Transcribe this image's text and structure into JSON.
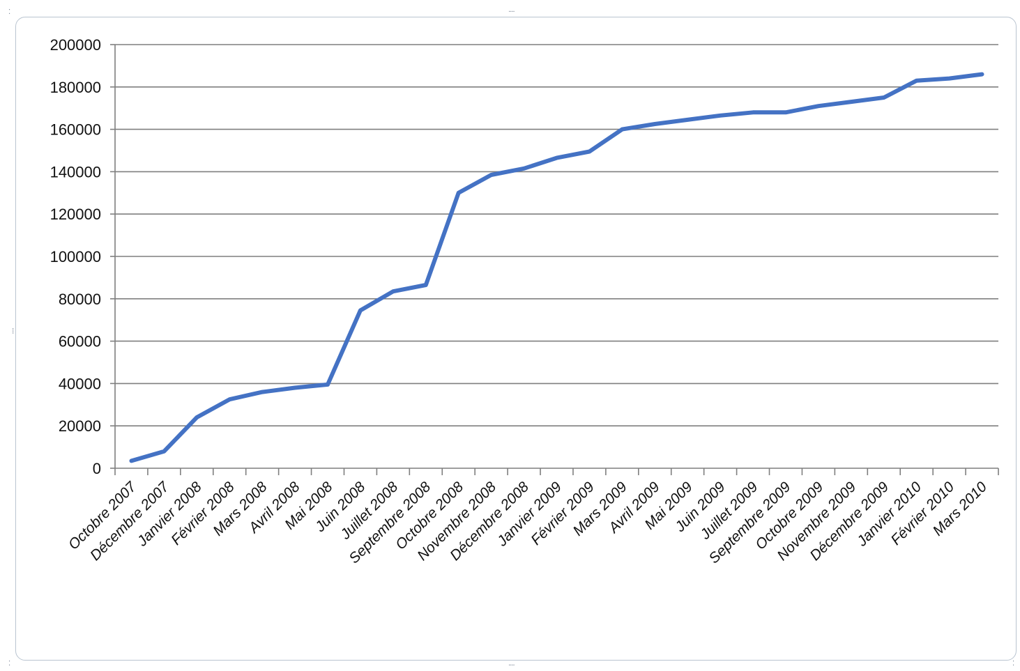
{
  "chart_data": {
    "type": "line",
    "title": "",
    "xlabel": "",
    "ylabel": "",
    "ylim": [
      0,
      200000
    ],
    "yticks": [
      0,
      20000,
      40000,
      60000,
      80000,
      100000,
      120000,
      140000,
      160000,
      180000,
      200000
    ],
    "grid": true,
    "legend": "none",
    "categories": [
      "Octobre 2007",
      "Décembre 2007",
      "Janvier 2008",
      "Février 2008",
      "Mars 2008",
      "Avril 2008",
      "Mai 2008",
      "Juin 2008",
      "Juillet 2008",
      "Septembre 2008",
      "Octobre 2008",
      "Novembre 2008",
      "Décembre 2008",
      "Janvier 2009",
      "Février 2009",
      "Mars 2009",
      "Avril 2009",
      "Mai 2009",
      "Juin 2009",
      "Juillet 2009",
      "Septembre 2009",
      "Octobre 2009",
      "Novembre 2009",
      "Décembre 2009",
      "Janvier 2010",
      "Février 2010",
      "Mars 2010"
    ],
    "series": [
      {
        "color": "#4472c4",
        "values": [
          3500,
          8000,
          24000,
          32500,
          36000,
          38000,
          39500,
          74500,
          83500,
          86500,
          130000,
          138500,
          141500,
          146500,
          149500,
          160000,
          162500,
          164500,
          166500,
          168000,
          168000,
          171000,
          173000,
          175000,
          183000,
          184000,
          186000
        ]
      }
    ]
  }
}
